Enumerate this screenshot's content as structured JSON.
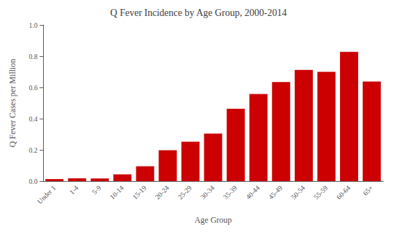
{
  "chart_data": {
    "type": "bar",
    "title": "Q Fever Incidence by Age Group, 2000-2014",
    "xlabel": "Age Group",
    "ylabel": "Q Fever Cases per Million",
    "categories": [
      "Under 1",
      "1-4",
      "5-9",
      "10-14",
      "15-19",
      "20-24",
      "25-29",
      "30-34",
      "35-39",
      "40-44",
      "45-49",
      "50-54",
      "55-59",
      "60-64",
      "65+"
    ],
    "values": [
      0.013,
      0.018,
      0.017,
      0.043,
      0.095,
      0.198,
      0.252,
      0.305,
      0.463,
      0.558,
      0.635,
      0.712,
      0.7,
      0.828,
      0.638
    ],
    "color": "#cc0000",
    "ylim": [
      0,
      1.0
    ],
    "yticks": [
      {
        "value": 0.0,
        "label": "0.0"
      },
      0.2,
      0.4,
      0.6,
      0.8,
      {
        "value": 1.0,
        "label": "1.0"
      }
    ],
    "grid": false
  }
}
